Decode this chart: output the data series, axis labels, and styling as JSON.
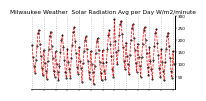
{
  "title": "Milwaukee Weather  Solar Radiation Avg per Day W/m2/minute",
  "values": [
    180,
    130,
    95,
    65,
    120,
    175,
    230,
    240,
    185,
    135,
    85,
    55,
    160,
    105,
    75,
    40,
    115,
    165,
    215,
    235,
    175,
    125,
    75,
    50,
    155,
    100,
    70,
    35,
    95,
    150,
    200,
    220,
    170,
    120,
    70,
    45,
    165,
    110,
    80,
    45,
    125,
    180,
    235,
    255,
    195,
    145,
    90,
    60,
    170,
    115,
    85,
    30,
    105,
    155,
    200,
    215,
    165,
    115,
    70,
    40,
    155,
    100,
    70,
    20,
    95,
    145,
    195,
    210,
    160,
    110,
    65,
    35,
    160,
    105,
    75,
    40,
    110,
    165,
    220,
    240,
    185,
    135,
    80,
    50,
    285,
    195,
    150,
    100,
    160,
    220,
    265,
    280,
    225,
    170,
    115,
    80,
    190,
    135,
    100,
    60,
    140,
    200,
    250,
    265,
    210,
    160,
    105,
    70,
    185,
    130,
    95,
    50,
    130,
    185,
    240,
    255,
    200,
    145,
    90,
    55,
    170,
    115,
    80,
    40,
    120,
    175,
    230,
    245,
    190,
    140,
    85,
    50,
    165,
    110,
    75,
    35,
    110,
    165,
    215,
    230,
    175,
    125,
    75,
    45,
    155,
    100
  ],
  "line_color": "#ff0000",
  "line_style": "--",
  "marker": ".",
  "marker_color": "#000000",
  "bg_color": "#ffffff",
  "grid_color": "#aaaaaa",
  "grid_style": ":",
  "ylim": [
    0,
    300
  ],
  "yticks": [
    50,
    100,
    150,
    200,
    250,
    300
  ],
  "title_fontsize": 4.2,
  "tick_fontsize": 3.0,
  "xtick_interval": 12
}
